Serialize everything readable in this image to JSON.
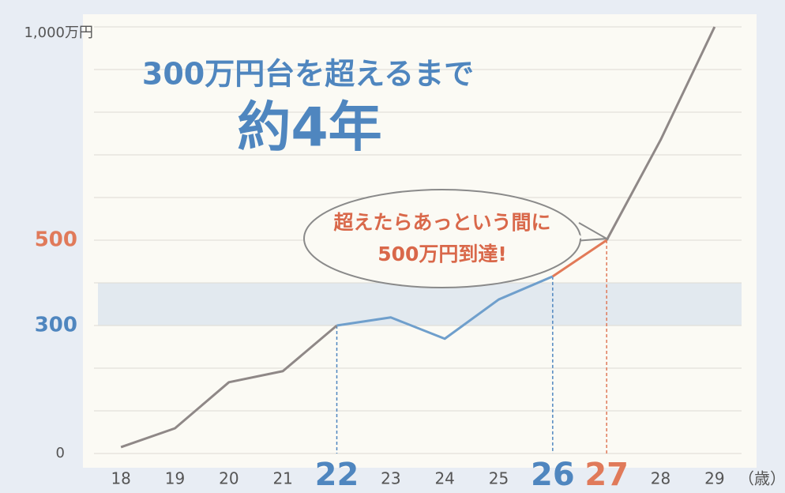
{
  "chart_data": {
    "type": "line",
    "title": "300万円台を超えるまで",
    "subtitle": "約4年",
    "annotation": [
      "超えたらあっという間に",
      "500万円到達!"
    ],
    "x_unit": "（歳）",
    "x": [
      18,
      19,
      20,
      21,
      22,
      23,
      24,
      25,
      26,
      27,
      28,
      29
    ],
    "series": [
      {
        "color": "#8f8887",
        "values": [
          15,
          59,
          167,
          193,
          300,
          null,
          null,
          null,
          null,
          500,
          735,
          1000
        ]
      },
      {
        "color": "#6f9fcc",
        "values": [
          null,
          null,
          null,
          null,
          300,
          319,
          269,
          361,
          415,
          null,
          null,
          null
        ]
      },
      {
        "color": "#e27a58",
        "values": [
          null,
          null,
          null,
          null,
          null,
          null,
          null,
          null,
          415,
          500,
          null,
          null
        ]
      }
    ],
    "xlim": [
      17.5,
      29.5
    ],
    "ylim": [
      0,
      1000
    ],
    "yticks": [
      0,
      300,
      500,
      {
        "value": 1000,
        "label": "1,000万円"
      }
    ],
    "ytick_colors": [
      "#555555",
      "#4f86bf",
      "#e07a5a",
      "#555555"
    ],
    "minor_yticks": [
      100,
      200,
      400,
      600,
      700,
      800,
      900
    ],
    "band": [
      300,
      400
    ],
    "band_color": "#e2e9ef",
    "highlights": [
      {
        "x": 22,
        "color": "#4f86bf"
      },
      {
        "x": 26,
        "color": "#4f86bf"
      },
      {
        "x": 27,
        "color": "#e07a5a"
      }
    ],
    "grid": true
  }
}
